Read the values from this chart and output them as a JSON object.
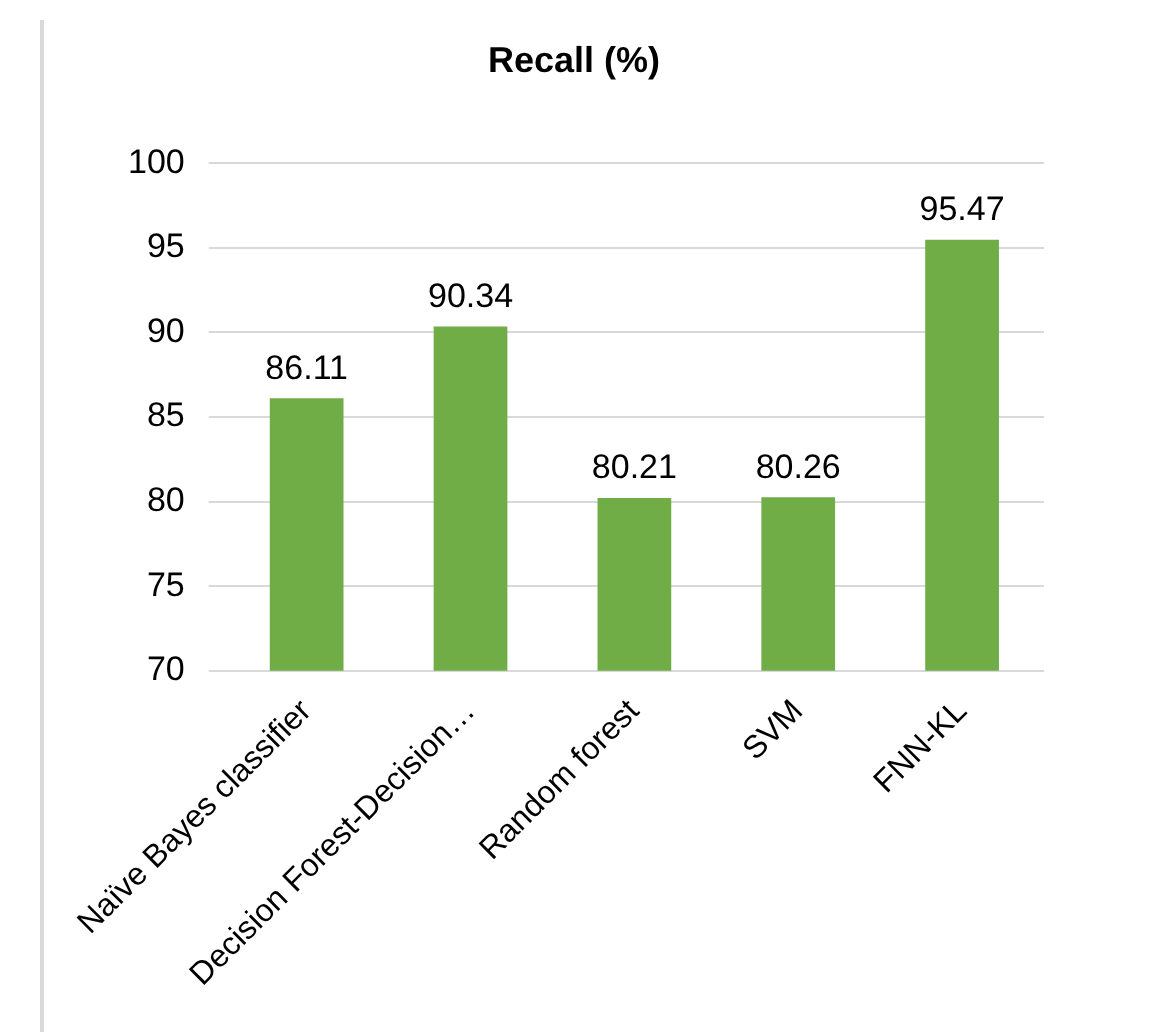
{
  "chart_data": {
    "type": "bar",
    "title": "Recall (%)",
    "categories": [
      "Naïve Bayes classifier",
      "Decision Forest-Decision…",
      "Random forest",
      "SVM",
      "FNN-KL"
    ],
    "values": [
      86.11,
      90.34,
      80.21,
      80.26,
      95.47
    ],
    "color": "#70ad47",
    "ylim": [
      70,
      100
    ],
    "yticks": [
      70,
      75,
      80,
      85,
      90,
      95,
      100
    ],
    "grid": "y",
    "data_labels": true
  }
}
